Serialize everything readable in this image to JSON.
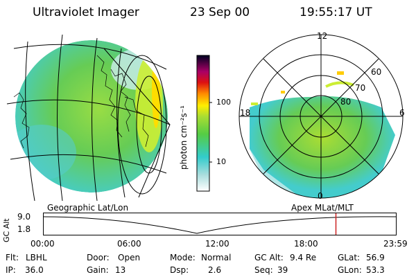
{
  "header": {
    "title": "Ultraviolet Imager",
    "date": "23 Sep 00",
    "time": "19:55:17 UT"
  },
  "colorbar": {
    "unit_label": "photon cm⁻²s⁻¹",
    "ticks": [
      "100",
      "10"
    ]
  },
  "polar": {
    "labels": {
      "noon": "12",
      "midnight": "0",
      "dusk": "18",
      "dawn": "6"
    },
    "lat_labels": [
      "60",
      "70",
      "80"
    ]
  },
  "panel_labels": {
    "left": "Geographic Lat/Lon",
    "right": "Apex MLat/MLT"
  },
  "altitude_plot": {
    "axis_label": "GC Alt",
    "y_ticks": [
      "9.0",
      "1.8"
    ],
    "x_ticks": [
      "00:00",
      "06:00",
      "12:00",
      "18:00",
      "23:59"
    ],
    "current_time_fraction": 0.83
  },
  "info": {
    "filter": {
      "label": "Flt:",
      "value": "LBHL"
    },
    "ip": {
      "label": "IP:",
      "value": "36.0"
    },
    "door": {
      "label": "Door:",
      "value": "Open"
    },
    "gain": {
      "label": "Gain:",
      "value": "13"
    },
    "mode": {
      "label": "Mode:",
      "value": "Normal"
    },
    "dsp": {
      "label": "Dsp:",
      "value": "2.6"
    },
    "gcalt": {
      "label": "GC Alt:",
      "value": "9.4 Re"
    },
    "seq": {
      "label": "Seq:",
      "value": "39"
    },
    "glat": {
      "label": "GLat:",
      "value": "56.9"
    },
    "glon": {
      "label": "GLon:",
      "value": "53.3"
    }
  },
  "colors": {
    "cyan": "#33cccc",
    "green": "#66cc33",
    "yellow_green": "#ccee33",
    "yellow": "#ffee00",
    "marker": "#cc2222"
  }
}
